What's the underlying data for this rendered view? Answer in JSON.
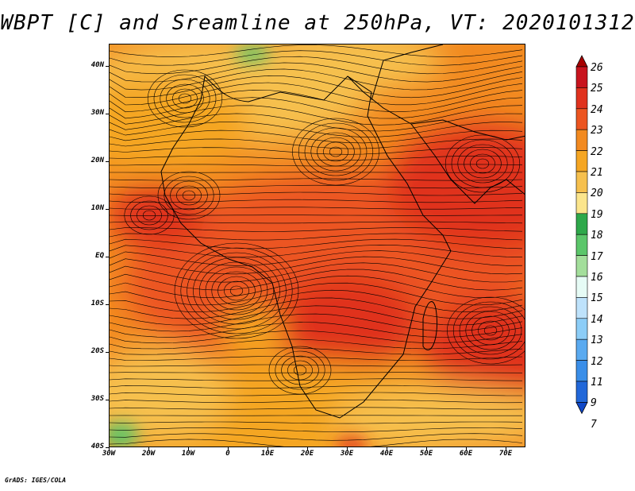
{
  "title": "WBPT [C] and Sreamline at 250hPa, VT: 2020101312",
  "footer": "GrADS: IGES/COLA",
  "map": {
    "lat_labels": [
      "40N",
      "30N",
      "20N",
      "10N",
      "EQ",
      "10S",
      "20S",
      "30S",
      "40S"
    ],
    "lon_labels": [
      "30W",
      "20W",
      "10W",
      "0",
      "10E",
      "20E",
      "30E",
      "40E",
      "50E",
      "60E",
      "70E"
    ],
    "lat_range": [
      -40,
      40
    ],
    "lon_range": [
      -30,
      75
    ],
    "fields": [
      "wet-bulb potential temperature shading",
      "streamlines"
    ]
  },
  "colorbar": {
    "labels": [
      "26",
      "25",
      "24",
      "23",
      "22",
      "21",
      "20",
      "19",
      "18",
      "17",
      "16",
      "15",
      "14",
      "13",
      "12",
      "11",
      "9",
      "7"
    ],
    "colors": [
      "#a60000",
      "#c8141e",
      "#e0321e",
      "#ec5520",
      "#f28a20",
      "#f5a623",
      "#f6c04e",
      "#fbe58c",
      "#2ea84a",
      "#5bc66a",
      "#a3de9b",
      "#e6fbf5",
      "#bee2fb",
      "#8ccdf7",
      "#5aaaf0",
      "#3a8ee8",
      "#2268d9",
      "#1048c8"
    ]
  }
}
